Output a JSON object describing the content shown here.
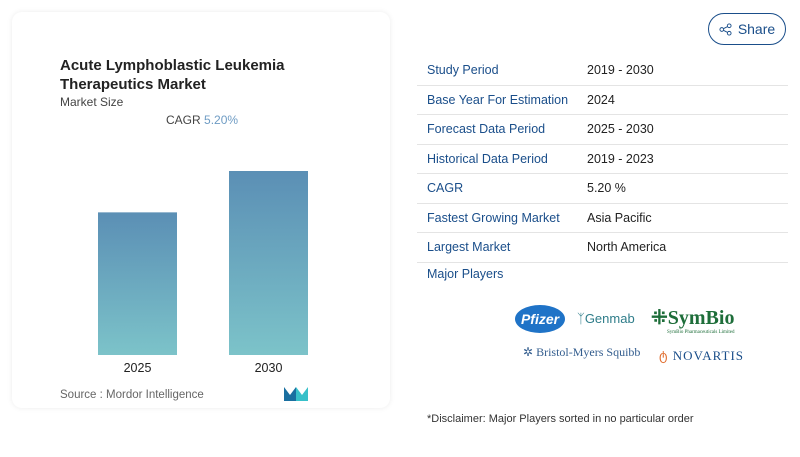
{
  "share_label": "Share",
  "chart_data": {
    "type": "bar",
    "title": "Acute Lymphoblastic Leukemia Therapeutics Market",
    "subtitle": "Market Size",
    "cagr_label": "CAGR",
    "cagr_value": "5.20%",
    "categories": [
      "2025",
      "2030"
    ],
    "values": [
      1.0,
      1.29
    ],
    "ylim": [
      0,
      1.35
    ],
    "source": "Source :  Mordor Intelligence",
    "colors": [
      "#5b8fb5",
      "#7cc3c9"
    ]
  },
  "table": [
    {
      "label": "Study Period",
      "value": "2019 - 2030"
    },
    {
      "label": "Base Year For Estimation",
      "value": "2024"
    },
    {
      "label": "Forecast Data Period",
      "value": "2025 - 2030"
    },
    {
      "label": "Historical Data Period",
      "value": "2019 - 2023"
    },
    {
      "label": "CAGR",
      "value": "5.20 %"
    },
    {
      "label": "Fastest Growing Market",
      "value": "Asia Pacific"
    },
    {
      "label": "Largest Market",
      "value": "North America"
    }
  ],
  "major_players_label": "Major Players",
  "players": [
    "Pfizer",
    "Genmab",
    "SymBio",
    "SymBio Pharmaceuticals Limited",
    "Bristol-Myers Squibb",
    "NOVARTIS"
  ],
  "disclaimer": "*Disclaimer: Major Players sorted in no particular order"
}
